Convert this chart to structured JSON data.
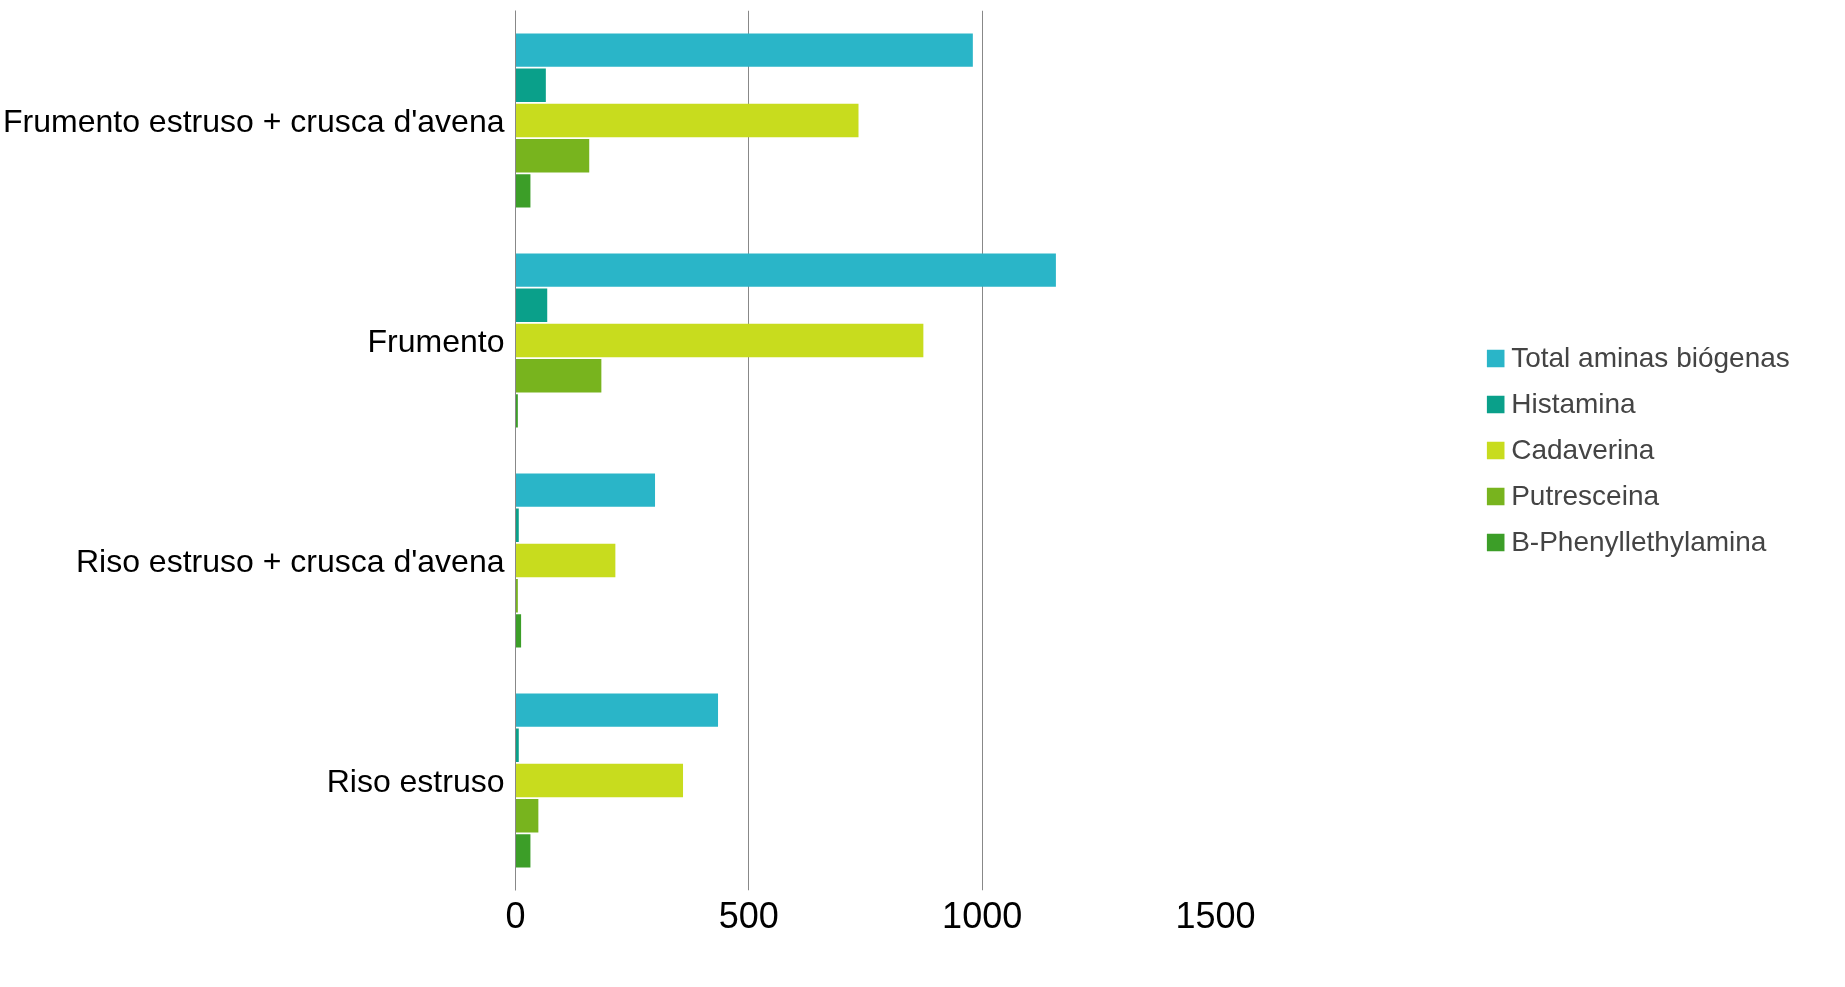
{
  "chart_data": {
    "type": "bar",
    "orientation": "horizontal",
    "categories": [
      "Frumento estruso + crusca d'avena",
      "Frumento",
      "Riso estruso + crusca d'avena",
      "Riso estruso"
    ],
    "series": [
      {
        "name": "Total aminas biógenas",
        "color": "#2ab5c8",
        "values": [
          980,
          1158,
          299,
          434
        ]
      },
      {
        "name": "Histamina",
        "color": "#0aa08a",
        "values": [
          65,
          68,
          7,
          7
        ]
      },
      {
        "name": "Cadaverina",
        "color": "#c8dc1e",
        "values": [
          735,
          874,
          214,
          359
        ]
      },
      {
        "name": "Putresceina",
        "color": "#78b41e",
        "values": [
          158,
          184,
          5,
          49
        ]
      },
      {
        "name": "B-Phenyllethylamina",
        "color": "#3c9e28",
        "values": [
          32,
          5,
          12,
          32
        ]
      }
    ],
    "xlim": [
      0,
      1500
    ],
    "xticks": [
      0,
      500,
      1000,
      1500
    ],
    "grid": "x",
    "legend": "right"
  }
}
